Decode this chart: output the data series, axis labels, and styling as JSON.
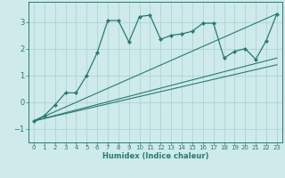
{
  "xlabel": "Humidex (Indice chaleur)",
  "xlim": [
    -0.5,
    23.5
  ],
  "ylim": [
    -1.5,
    3.75
  ],
  "yticks": [
    -1,
    0,
    1,
    2,
    3
  ],
  "xticks": [
    0,
    1,
    2,
    3,
    4,
    5,
    6,
    7,
    8,
    9,
    10,
    11,
    12,
    13,
    14,
    15,
    16,
    17,
    18,
    19,
    20,
    21,
    22,
    23
  ],
  "bg_color": "#ceeaea",
  "line_color": "#2a7a6f",
  "grid_color": "#aacfcf",
  "main_x": [
    0,
    1,
    2,
    3,
    4,
    5,
    6,
    7,
    8,
    9,
    10,
    11,
    12,
    13,
    14,
    15,
    16,
    17,
    18,
    19,
    20,
    21,
    22,
    23
  ],
  "main_y": [
    -0.7,
    -0.5,
    -0.1,
    0.35,
    0.35,
    1.0,
    1.85,
    3.05,
    3.05,
    2.25,
    3.2,
    3.25,
    2.35,
    2.5,
    2.55,
    2.65,
    2.95,
    2.95,
    1.65,
    1.9,
    2.0,
    1.6,
    2.3,
    3.3
  ],
  "line1_x": [
    0,
    23
  ],
  "line1_y": [
    -0.7,
    3.3
  ],
  "line2_x": [
    0,
    23
  ],
  "line2_y": [
    -0.7,
    1.65
  ],
  "line3_x": [
    0,
    23
  ],
  "line3_y": [
    -0.7,
    1.4
  ]
}
